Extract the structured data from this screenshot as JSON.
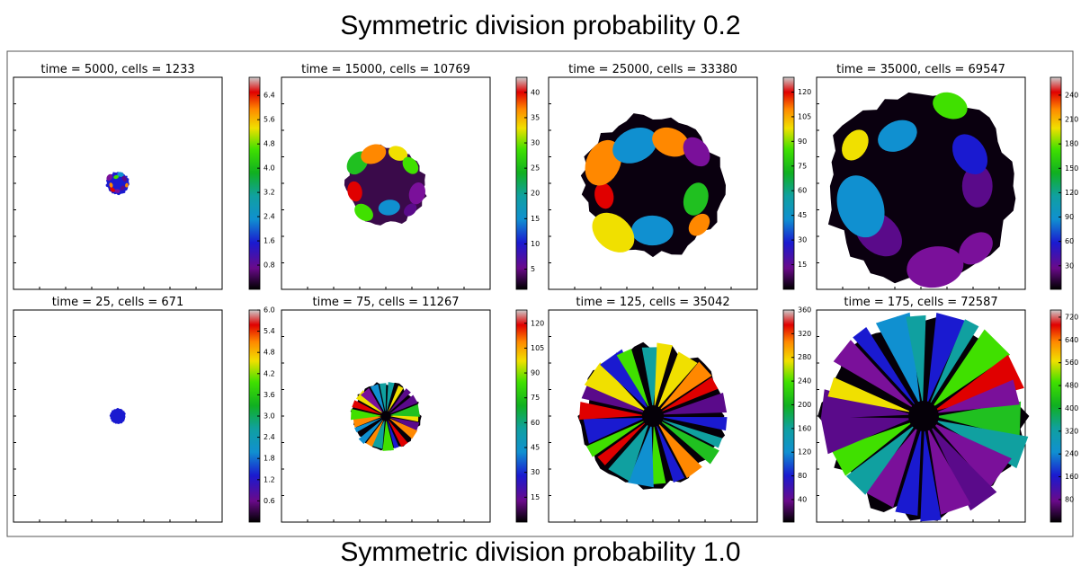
{
  "title": "Symmetric division probability 0.2",
  "caption": "Symmetric division probability 1.0",
  "panels": [
    {
      "title": "time = 5000, cells = 1233",
      "colorbar": {
        "clim": [
          0,
          7
        ],
        "ticks": [
          0.8,
          1.6,
          2.4,
          3.2,
          {
            "value": 4,
            "label": "4.0"
          },
          4.8,
          5.6,
          6.4
        ]
      }
    },
    {
      "title": "time = 15000, cells = 10769",
      "colorbar": {
        "clim": [
          1,
          43
        ],
        "ticks": [
          5,
          10,
          15,
          20,
          25,
          30,
          35,
          40
        ]
      }
    },
    {
      "title": "time = 25000, cells = 33380",
      "colorbar": {
        "clim": [
          0,
          129
        ],
        "ticks": [
          15,
          30,
          45,
          60,
          75,
          90,
          105,
          120
        ]
      }
    },
    {
      "title": "time = 35000, cells = 69547",
      "colorbar": {
        "clim": [
          1,
          262
        ],
        "ticks": [
          30,
          60,
          90,
          120,
          150,
          180,
          210,
          240
        ]
      }
    },
    {
      "title": "time = 25, cells = 671",
      "colorbar": {
        "clim": [
          0,
          6
        ],
        "ticks": [
          0.6,
          1.2,
          1.8,
          2.4,
          {
            "value": 3,
            "label": "3.0"
          },
          3.6,
          4.2,
          4.8,
          5.4,
          {
            "value": 6,
            "label": "6.0"
          }
        ]
      }
    },
    {
      "title": "time = 75, cells = 11267",
      "colorbar": {
        "clim": [
          0,
          128
        ],
        "ticks": [
          15,
          30,
          45,
          60,
          75,
          90,
          105,
          120
        ]
      }
    },
    {
      "title": "time = 125, cells = 35042",
      "colorbar": {
        "clim": [
          2,
          360
        ],
        "ticks": [
          40,
          80,
          120,
          160,
          200,
          240,
          280,
          320,
          360
        ]
      }
    },
    {
      "title": "time = 175, cells = 72587",
      "colorbar": {
        "clim": [
          1,
          745
        ],
        "ticks": [
          80,
          160,
          240,
          320,
          400,
          480,
          560,
          640,
          720
        ]
      }
    }
  ]
}
